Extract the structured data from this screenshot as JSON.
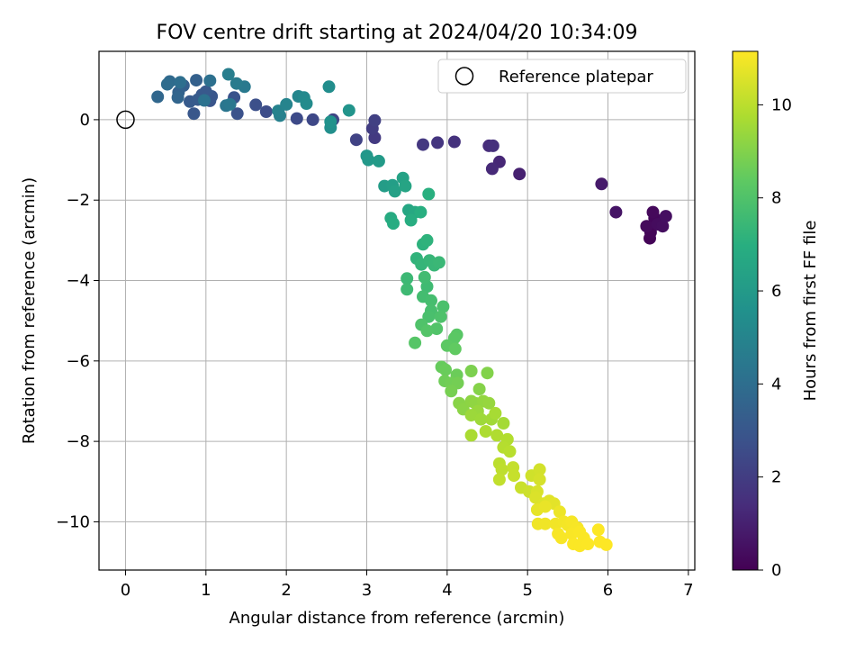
{
  "chart_data": {
    "type": "scatter",
    "title": "FOV centre drift starting at 2024/04/20 10:34:09",
    "xlabel": "Angular distance from reference (arcmin)",
    "ylabel": "Rotation from reference (arcmin)",
    "xlim": [
      -0.33,
      7.08
    ],
    "ylim": [
      -11.2,
      1.7
    ],
    "xticks": [
      0,
      1,
      2,
      3,
      4,
      5,
      6,
      7
    ],
    "yticks": [
      -10,
      -8,
      -6,
      -4,
      -2,
      0
    ],
    "grid": true,
    "legend": {
      "placement": "top-right",
      "entries": [
        "Reference platepar"
      ]
    },
    "reference_point": {
      "x": 0,
      "y": 0
    },
    "colorbar": {
      "label": "Hours from first FF file",
      "range": [
        0,
        11.15
      ],
      "ticks": [
        0,
        2,
        4,
        6,
        8,
        10
      ],
      "colormap": "viridis"
    },
    "points": [
      [
        6.52,
        -2.95,
        0.1
      ],
      [
        6.53,
        -2.8,
        0.15
      ],
      [
        6.58,
        -2.45,
        0.2
      ],
      [
        6.56,
        -2.3,
        0.25
      ],
      [
        6.48,
        -2.65,
        0.3
      ],
      [
        6.62,
        -2.6,
        0.35
      ],
      [
        6.68,
        -2.65,
        0.4
      ],
      [
        6.72,
        -2.4,
        0.45
      ],
      [
        6.1,
        -2.3,
        0.6
      ],
      [
        5.92,
        -1.6,
        0.8
      ],
      [
        4.9,
        -1.35,
        1.0
      ],
      [
        4.65,
        -1.05,
        1.2
      ],
      [
        4.56,
        -1.22,
        1.3
      ],
      [
        4.52,
        -0.65,
        1.4
      ],
      [
        4.57,
        -0.65,
        1.5
      ],
      [
        4.09,
        -0.55,
        1.6
      ],
      [
        3.88,
        -0.57,
        1.7
      ],
      [
        3.7,
        -0.62,
        1.8
      ],
      [
        3.1,
        -0.45,
        1.9
      ],
      [
        3.07,
        -0.22,
        2.0
      ],
      [
        3.1,
        -0.02,
        2.1
      ],
      [
        2.87,
        -0.5,
        2.2
      ],
      [
        2.58,
        0.0,
        2.3
      ],
      [
        2.33,
        0.0,
        2.4
      ],
      [
        2.13,
        0.03,
        2.5
      ],
      [
        1.75,
        0.2,
        2.6
      ],
      [
        1.62,
        0.37,
        2.7
      ],
      [
        1.39,
        0.15,
        2.8
      ],
      [
        1.35,
        0.55,
        2.85
      ],
      [
        1.05,
        0.47,
        2.9
      ],
      [
        1.07,
        0.58,
        2.95
      ],
      [
        0.85,
        0.15,
        3.0
      ],
      [
        0.95,
        0.62,
        3.05
      ],
      [
        1.0,
        0.7,
        3.1
      ],
      [
        0.8,
        0.45,
        3.15
      ],
      [
        0.9,
        0.5,
        3.2
      ],
      [
        0.72,
        0.85,
        3.3
      ],
      [
        0.88,
        0.98,
        3.4
      ],
      [
        0.66,
        0.68,
        3.5
      ],
      [
        0.65,
        0.55,
        3.6
      ],
      [
        0.4,
        0.57,
        3.7
      ],
      [
        0.55,
        0.95,
        3.8
      ],
      [
        0.52,
        0.88,
        3.9
      ],
      [
        0.68,
        0.93,
        4.0
      ],
      [
        1.05,
        0.97,
        4.1
      ],
      [
        0.98,
        0.48,
        4.2
      ],
      [
        1.25,
        0.35,
        4.3
      ],
      [
        1.3,
        0.38,
        4.4
      ],
      [
        1.48,
        0.82,
        4.5
      ],
      [
        1.38,
        0.9,
        4.6
      ],
      [
        1.28,
        1.13,
        4.7
      ],
      [
        1.92,
        0.1,
        4.8
      ],
      [
        1.9,
        0.22,
        4.9
      ],
      [
        2.0,
        0.38,
        5.0
      ],
      [
        2.15,
        0.58,
        5.1
      ],
      [
        2.22,
        0.55,
        5.2
      ],
      [
        2.25,
        0.4,
        5.3
      ],
      [
        2.53,
        0.82,
        5.4
      ],
      [
        2.55,
        -0.2,
        5.5
      ],
      [
        2.55,
        -0.05,
        5.6
      ],
      [
        2.78,
        0.23,
        5.7
      ],
      [
        3.0,
        -0.9,
        5.85
      ],
      [
        3.02,
        -1.0,
        5.9
      ],
      [
        3.15,
        -1.03,
        6.0
      ],
      [
        3.22,
        -1.65,
        6.1
      ],
      [
        3.32,
        -1.63,
        6.2
      ],
      [
        3.35,
        -1.78,
        6.3
      ],
      [
        3.45,
        -1.45,
        6.4
      ],
      [
        3.48,
        -1.65,
        6.5
      ],
      [
        3.52,
        -2.25,
        6.6
      ],
      [
        3.6,
        -2.3,
        6.7
      ],
      [
        3.3,
        -2.45,
        6.8
      ],
      [
        3.33,
        -2.58,
        6.85
      ],
      [
        3.55,
        -2.5,
        6.9
      ],
      [
        3.67,
        -2.3,
        6.95
      ],
      [
        3.77,
        -1.85,
        7.0
      ],
      [
        3.7,
        -3.1,
        7.1
      ],
      [
        3.75,
        -3.0,
        7.15
      ],
      [
        3.62,
        -3.45,
        7.2
      ],
      [
        3.68,
        -3.6,
        7.3
      ],
      [
        3.78,
        -3.5,
        7.35
      ],
      [
        3.84,
        -3.62,
        7.4
      ],
      [
        3.9,
        -3.55,
        7.45
      ],
      [
        3.5,
        -3.95,
        7.5
      ],
      [
        3.5,
        -4.22,
        7.55
      ],
      [
        3.75,
        -4.15,
        7.6
      ],
      [
        3.72,
        -3.92,
        7.65
      ],
      [
        3.7,
        -4.4,
        7.7
      ],
      [
        3.8,
        -4.5,
        7.75
      ],
      [
        3.8,
        -4.75,
        7.8
      ],
      [
        3.77,
        -4.9,
        7.85
      ],
      [
        3.95,
        -4.65,
        7.9
      ],
      [
        3.92,
        -4.9,
        7.95
      ],
      [
        3.68,
        -5.1,
        8.0
      ],
      [
        3.87,
        -5.2,
        8.05
      ],
      [
        3.75,
        -5.25,
        8.1
      ],
      [
        3.6,
        -5.55,
        8.15
      ],
      [
        4.12,
        -5.35,
        8.2
      ],
      [
        4.09,
        -5.43,
        8.25
      ],
      [
        4.0,
        -5.62,
        8.3
      ],
      [
        4.1,
        -5.7,
        8.4
      ],
      [
        3.93,
        -6.15,
        8.5
      ],
      [
        3.98,
        -6.22,
        8.55
      ],
      [
        4.12,
        -6.35,
        8.6
      ],
      [
        3.97,
        -6.5,
        8.65
      ],
      [
        4.05,
        -6.55,
        8.7
      ],
      [
        4.13,
        -6.55,
        8.75
      ],
      [
        4.05,
        -6.75,
        8.8
      ],
      [
        4.3,
        -6.25,
        8.9
      ],
      [
        4.5,
        -6.3,
        9.0
      ],
      [
        4.4,
        -6.7,
        9.05
      ],
      [
        4.15,
        -7.05,
        9.1
      ],
      [
        4.2,
        -7.2,
        9.15
      ],
      [
        4.3,
        -7.0,
        9.2
      ],
      [
        4.35,
        -7.05,
        9.25
      ],
      [
        4.45,
        -7.0,
        9.3
      ],
      [
        4.52,
        -7.05,
        9.35
      ],
      [
        4.38,
        -7.25,
        9.4
      ],
      [
        4.3,
        -7.35,
        9.45
      ],
      [
        4.42,
        -7.45,
        9.5
      ],
      [
        4.55,
        -7.45,
        9.55
      ],
      [
        4.7,
        -7.55,
        9.6
      ],
      [
        4.6,
        -7.3,
        9.65
      ],
      [
        4.3,
        -7.85,
        9.7
      ],
      [
        4.48,
        -7.75,
        9.75
      ],
      [
        4.62,
        -7.85,
        9.8
      ],
      [
        4.75,
        -7.95,
        9.85
      ],
      [
        4.7,
        -8.15,
        9.9
      ],
      [
        4.78,
        -8.25,
        9.95
      ],
      [
        4.65,
        -8.55,
        10.0
      ],
      [
        4.68,
        -8.7,
        10.05
      ],
      [
        4.65,
        -8.95,
        10.1
      ],
      [
        4.82,
        -8.65,
        10.15
      ],
      [
        4.83,
        -8.85,
        10.2
      ],
      [
        4.92,
        -9.15,
        10.25
      ],
      [
        5.02,
        -9.25,
        10.3
      ],
      [
        5.05,
        -8.85,
        10.35
      ],
      [
        5.15,
        -8.7,
        10.4
      ],
      [
        5.15,
        -8.95,
        10.45
      ],
      [
        5.12,
        -9.25,
        10.5
      ],
      [
        5.1,
        -9.4,
        10.55
      ],
      [
        5.2,
        -9.55,
        10.6
      ],
      [
        5.27,
        -9.48,
        10.65
      ],
      [
        5.33,
        -9.55,
        10.7
      ],
      [
        5.12,
        -9.7,
        10.75
      ],
      [
        5.22,
        -9.62,
        10.8
      ],
      [
        5.4,
        -9.75,
        10.85
      ],
      [
        5.13,
        -10.05,
        10.9
      ],
      [
        5.22,
        -10.05,
        10.92
      ],
      [
        5.35,
        -10.05,
        10.95
      ],
      [
        5.45,
        -10.0,
        10.97
      ],
      [
        5.5,
        -10.08,
        11.0
      ],
      [
        5.55,
        -10.0,
        11.02
      ],
      [
        5.62,
        -10.15,
        11.04
      ],
      [
        5.38,
        -10.3,
        11.05
      ],
      [
        5.42,
        -10.4,
        11.07
      ],
      [
        5.55,
        -10.3,
        11.08
      ],
      [
        5.65,
        -10.25,
        11.09
      ],
      [
        5.7,
        -10.4,
        11.1
      ],
      [
        5.57,
        -10.55,
        11.11
      ],
      [
        5.65,
        -10.6,
        11.12
      ],
      [
        5.75,
        -10.55,
        11.13
      ],
      [
        5.88,
        -10.2,
        11.14
      ],
      [
        5.9,
        -10.5,
        11.145
      ],
      [
        5.98,
        -10.57,
        11.15
      ]
    ]
  }
}
